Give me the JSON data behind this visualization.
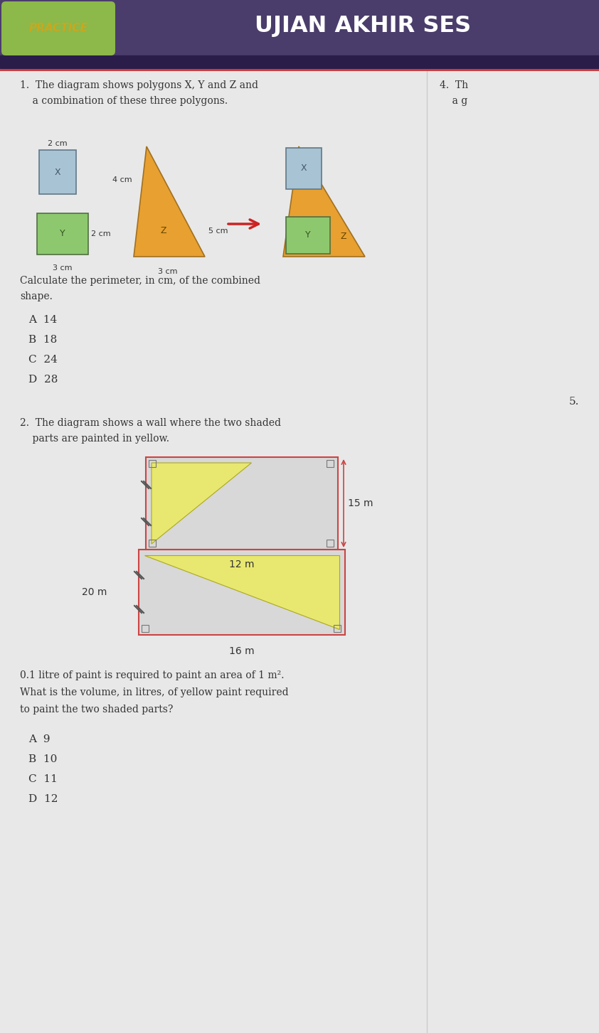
{
  "title_practice": "PRACTICE",
  "title_main": "UJIAN AKHIR SES",
  "header_bg_color": "#4a3d6b",
  "practice_bg_color": "#8db84a",
  "page_bg_color": "#e8e8e8",
  "q1_line1": "1.  The diagram shows polygons X, Y and Z and",
  "q1_line2": "    a combination of these three polygons.",
  "q1_calc1": "Calculate the perimeter, in cm, of the combined",
  "q1_calc2": "shape.",
  "q1_A": "A  14",
  "q1_B": "B  18",
  "q1_C": "C  24",
  "q1_D": "D  28",
  "q4_line1": "4.  Th",
  "q4_line2": "    a g",
  "num5": "5.",
  "q2_line1": "2.  The diagram shows a wall where the two shaded",
  "q2_line2": "    parts are painted in yellow.",
  "q2_paint1": "0.1 litre of paint is required to paint an area of 1 m².",
  "q2_paint2": "What is the volume, in litres, of yellow paint required",
  "q2_paint3": "to paint the two shaded parts?",
  "q2_A": "A  9",
  "q2_B": "B  10",
  "q2_C": "C  11",
  "q2_D": "D  12",
  "color_blue_rect": "#a8c4d4",
  "color_green_rect": "#8dc86e",
  "color_orange_tri": "#e8a030",
  "color_yellow_shade": "#e8e870",
  "color_red_arrow": "#cc2222",
  "color_wall_border": "#cc4444",
  "label_2cm": "2 cm",
  "label_4cm": "4 cm",
  "label_5cm": "5 cm",
  "label_2cm_y": "2 cm",
  "label_3cm": "3 cm",
  "label_15m": "15 m",
  "label_20m": "20 m",
  "label_12m": "12 m",
  "label_16m": "16 m"
}
